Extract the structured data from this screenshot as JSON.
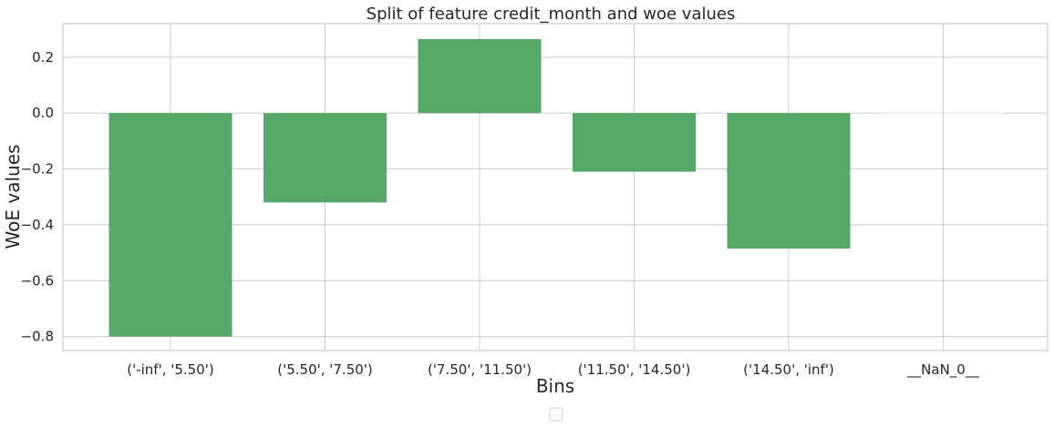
{
  "chart_data": {
    "type": "bar",
    "title": "Split of feature credit_month and woe values",
    "xlabel": "Bins",
    "ylabel": "WoE values",
    "categories": [
      "('-inf', '5.50')",
      "('5.50', '7.50')",
      "('7.50', '11.50')",
      "('11.50', '14.50')",
      "('14.50', 'inf')",
      "__NaN_0__"
    ],
    "values": [
      -0.8,
      -0.32,
      0.265,
      -0.21,
      -0.485,
      0.0
    ],
    "ylim": [
      -0.85,
      0.32
    ],
    "yticks": [
      0.2,
      0.0,
      -0.2,
      -0.4,
      -0.6,
      -0.8
    ],
    "ytick_labels": [
      "0.2",
      "0.0",
      "−0.2",
      "−0.4",
      "−0.6",
      "−0.8"
    ],
    "grid": true,
    "legend": "bottom-center, empty",
    "colors": {
      "bar": "#55a868",
      "grid": "#cccccc",
      "axis": "#cccccc",
      "text": "#262626"
    }
  }
}
